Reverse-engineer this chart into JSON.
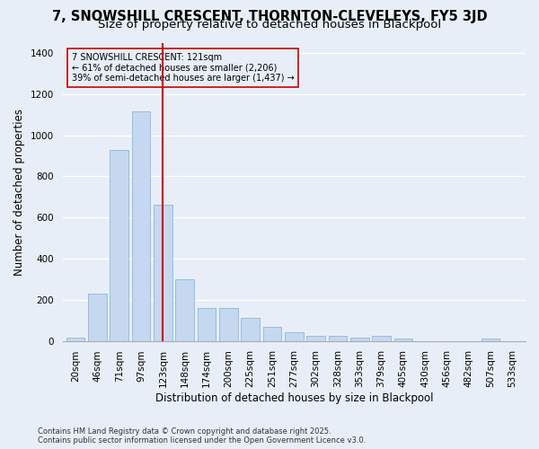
{
  "title": "7, SNOWSHILL CRESCENT, THORNTON-CLEVELEYS, FY5 3JD",
  "subtitle": "Size of property relative to detached houses in Blackpool",
  "xlabel": "Distribution of detached houses by size in Blackpool",
  "ylabel": "Number of detached properties",
  "categories": [
    "20sqm",
    "46sqm",
    "71sqm",
    "97sqm",
    "123sqm",
    "148sqm",
    "174sqm",
    "200sqm",
    "225sqm",
    "251sqm",
    "277sqm",
    "302sqm",
    "328sqm",
    "353sqm",
    "379sqm",
    "405sqm",
    "430sqm",
    "456sqm",
    "482sqm",
    "507sqm",
    "533sqm"
  ],
  "values": [
    15,
    230,
    930,
    1115,
    660,
    300,
    160,
    160,
    110,
    70,
    40,
    25,
    25,
    15,
    25,
    12,
    0,
    0,
    0,
    10,
    0
  ],
  "bar_color": "#c5d8f0",
  "bar_edge_color": "#7bafd4",
  "bg_color": "#e8eef8",
  "grid_color": "#ffffff",
  "vline_color": "#cc0000",
  "vline_x_index": 4,
  "annotation_text": "7 SNOWSHILL CRESCENT: 121sqm\n← 61% of detached houses are smaller (2,206)\n39% of semi-detached houses are larger (1,437) →",
  "annotation_box_edgecolor": "#cc0000",
  "ylim": [
    0,
    1450
  ],
  "yticks": [
    0,
    200,
    400,
    600,
    800,
    1000,
    1200,
    1400
  ],
  "footer": "Contains HM Land Registry data © Crown copyright and database right 2025.\nContains public sector information licensed under the Open Government Licence v3.0.",
  "title_fontsize": 10.5,
  "subtitle_fontsize": 9.5,
  "axis_label_fontsize": 8.5,
  "tick_fontsize": 7.5,
  "annotation_fontsize": 7,
  "footer_fontsize": 6
}
